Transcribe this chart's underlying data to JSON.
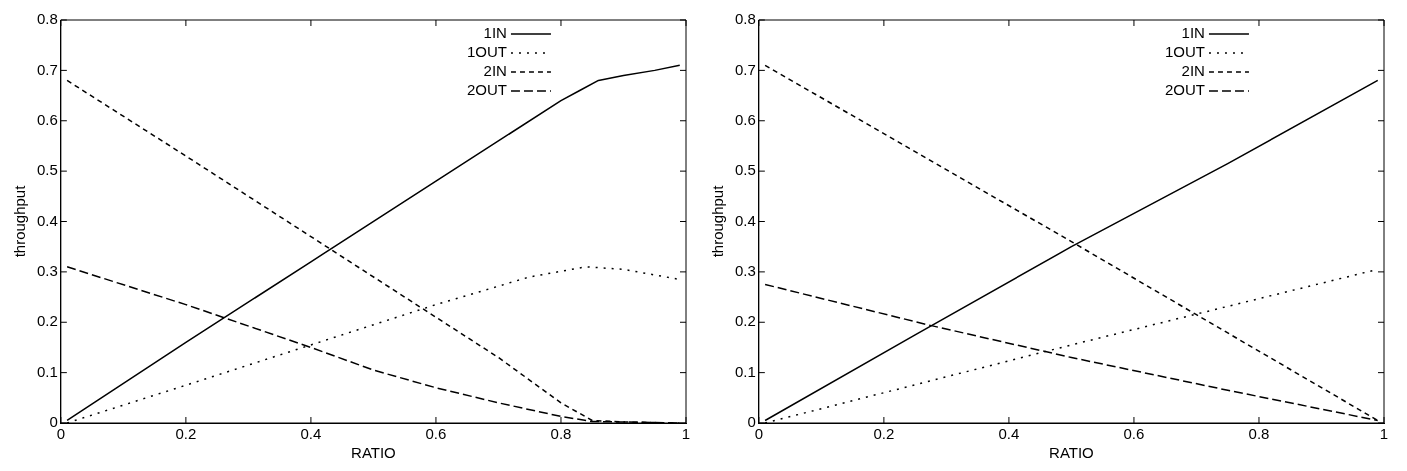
{
  "chart_data": [
    {
      "type": "line",
      "xlabel": "RATIO",
      "ylabel": "throughput",
      "xlim": [
        0,
        1
      ],
      "ylim": [
        0,
        0.8
      ],
      "xticks": [
        0,
        0.2,
        0.4,
        0.6,
        0.8,
        1
      ],
      "yticks": [
        0,
        0.1,
        0.2,
        0.3,
        0.4,
        0.5,
        0.6,
        0.7,
        0.8
      ],
      "grid": false,
      "legend": "top right",
      "marker": "none",
      "series": [
        {
          "name": "1IN",
          "color": "#000000",
          "line_style": "solid",
          "x": [
            0.01,
            0.2,
            0.4,
            0.6,
            0.8,
            0.83,
            0.86,
            0.9,
            0.95,
            0.99
          ],
          "values": [
            0.005,
            0.16,
            0.32,
            0.48,
            0.64,
            0.66,
            0.68,
            0.69,
            0.7,
            0.71
          ]
        },
        {
          "name": "1OUT",
          "color": "#000000",
          "line_style": "dotted",
          "x": [
            0.01,
            0.2,
            0.4,
            0.6,
            0.75,
            0.84,
            0.9,
            0.99
          ],
          "values": [
            0,
            0.075,
            0.155,
            0.235,
            0.29,
            0.31,
            0.305,
            0.285
          ]
        },
        {
          "name": "2IN",
          "color": "#000000",
          "line_style": "dashed",
          "x": [
            0.01,
            0.2,
            0.4,
            0.6,
            0.7,
            0.8,
            0.85,
            0.9,
            0.99
          ],
          "values": [
            0.68,
            0.53,
            0.37,
            0.21,
            0.13,
            0.04,
            0.005,
            0.002,
            0
          ]
        },
        {
          "name": "2OUT",
          "color": "#000000",
          "line_style": "dashed",
          "x": [
            0.01,
            0.2,
            0.4,
            0.5,
            0.6,
            0.7,
            0.8,
            0.85,
            0.99
          ],
          "values": [
            0.31,
            0.235,
            0.15,
            0.105,
            0.07,
            0.04,
            0.013,
            0.003,
            0
          ]
        }
      ]
    },
    {
      "type": "line",
      "xlabel": "RATIO",
      "ylabel": "throughput",
      "xlim": [
        0,
        1
      ],
      "ylim": [
        0,
        0.8
      ],
      "xticks": [
        0,
        0.2,
        0.4,
        0.6,
        0.8,
        1
      ],
      "yticks": [
        0,
        0.1,
        0.2,
        0.3,
        0.4,
        0.5,
        0.6,
        0.7,
        0.8
      ],
      "grid": false,
      "legend": "top right",
      "marker": "none",
      "series": [
        {
          "name": "1IN",
          "color": "#000000",
          "line_style": "solid",
          "x": [
            0.01,
            0.25,
            0.5,
            0.75,
            0.99
          ],
          "values": [
            0.005,
            0.175,
            0.35,
            0.515,
            0.68
          ]
        },
        {
          "name": "1OUT",
          "color": "#000000",
          "line_style": "dotted",
          "x": [
            0.01,
            0.5,
            0.99
          ],
          "values": [
            0,
            0.155,
            0.305
          ]
        },
        {
          "name": "2IN",
          "color": "#000000",
          "line_style": "dashed",
          "x": [
            0.01,
            0.5,
            0.7,
            0.99
          ],
          "values": [
            0.71,
            0.36,
            0.215,
            0.005
          ]
        },
        {
          "name": "2OUT",
          "color": "#000000",
          "line_style": "dashed",
          "x": [
            0.01,
            0.27,
            0.5,
            0.75,
            0.99
          ],
          "values": [
            0.275,
            0.195,
            0.13,
            0.065,
            0.005
          ]
        }
      ]
    }
  ]
}
